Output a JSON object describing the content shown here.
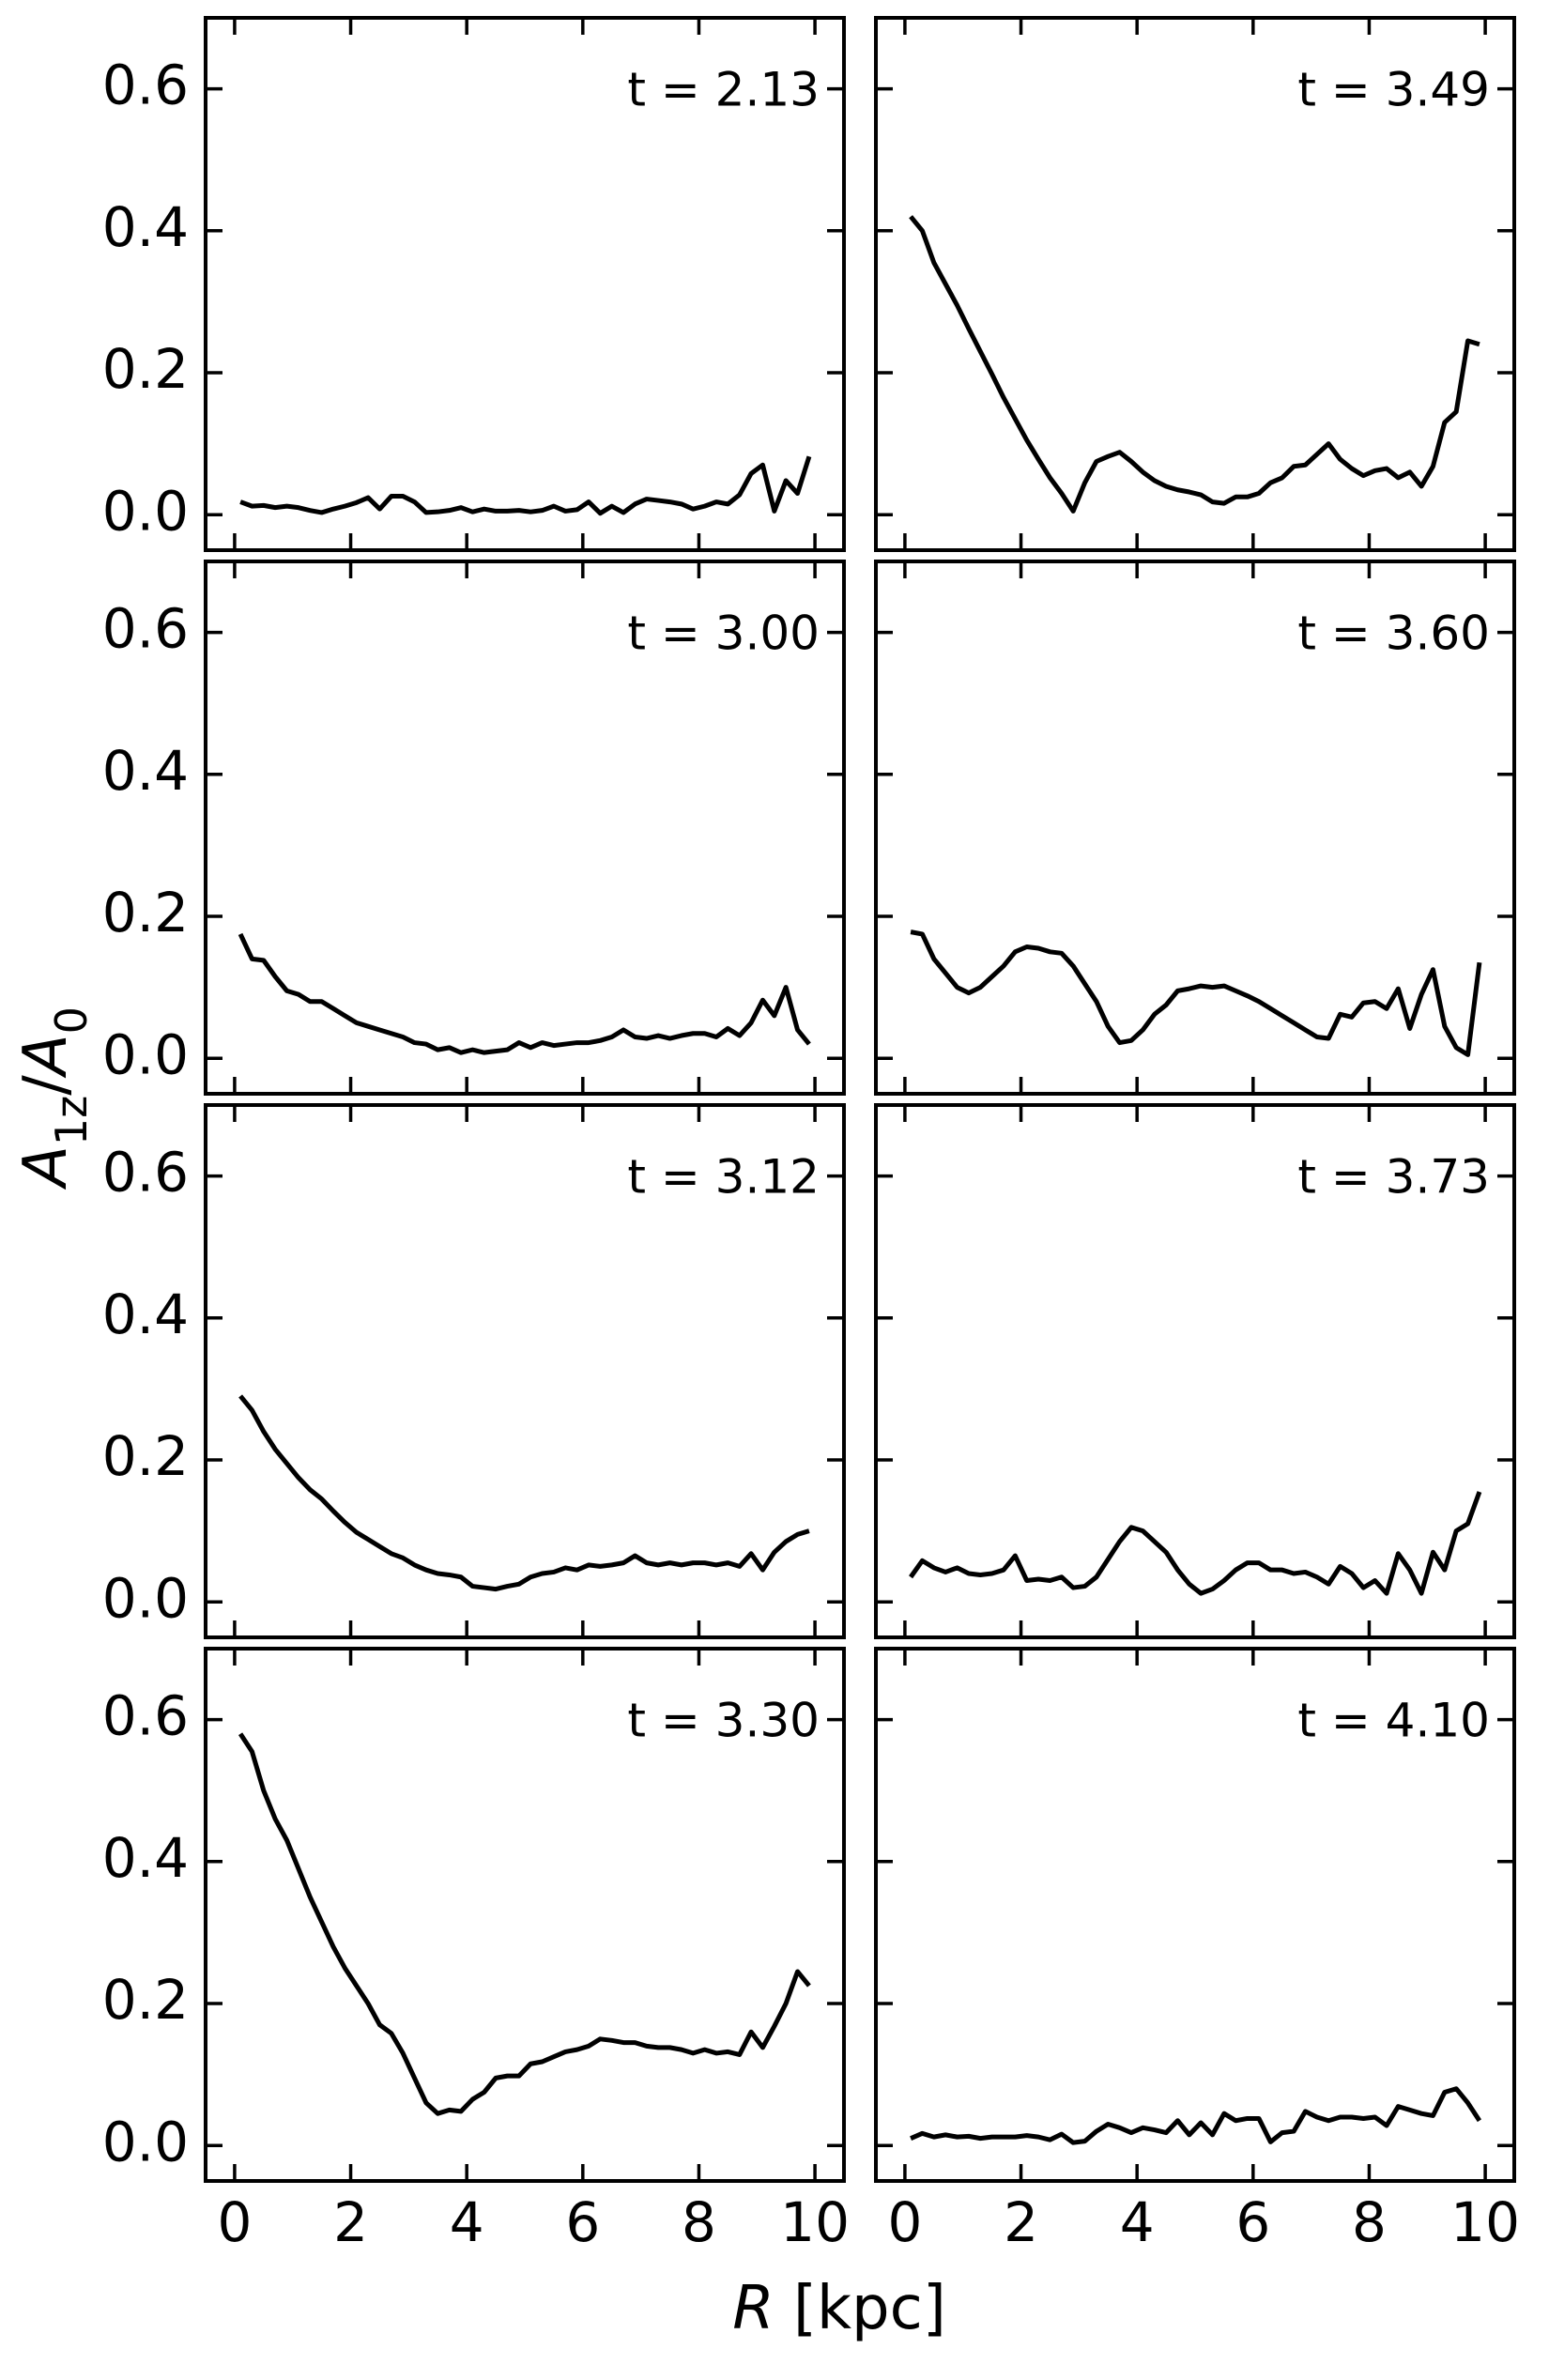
{
  "figure": {
    "xlabel": [
      {
        "text": "R",
        "italic": true
      },
      {
        "text": " [kpc]"
      }
    ],
    "ylabel": [
      {
        "text": "A",
        "italic": true
      },
      {
        "text": "1z",
        "sub": true
      },
      {
        "text": "/"
      },
      {
        "text": "A",
        "italic": true
      },
      {
        "text": "0",
        "sub": true
      }
    ]
  },
  "chart_data": [
    {
      "type": "line",
      "annotation": "t = 2.13",
      "x": [
        0.1,
        0.3,
        0.5,
        0.7,
        0.9,
        1.1,
        1.3,
        1.5,
        1.7,
        1.9,
        2.1,
        2.3,
        2.5,
        2.7,
        2.9,
        3.1,
        3.3,
        3.5,
        3.7,
        3.9,
        4.1,
        4.3,
        4.5,
        4.7,
        4.9,
        5.1,
        5.3,
        5.5,
        5.7,
        5.9,
        6.1,
        6.3,
        6.5,
        6.7,
        6.9,
        7.1,
        7.3,
        7.5,
        7.7,
        7.9,
        8.1,
        8.3,
        8.5,
        8.7,
        8.9,
        9.1,
        9.3,
        9.5,
        9.7,
        9.9
      ],
      "series": [
        {
          "color": "#000000",
          "values": [
            0.018,
            0.012,
            0.013,
            0.01,
            0.012,
            0.01,
            0.006,
            0.003,
            0.008,
            0.012,
            0.017,
            0.024,
            0.008,
            0.026,
            0.026,
            0.018,
            0.003,
            0.004,
            0.006,
            0.01,
            0.004,
            0.008,
            0.005,
            0.005,
            0.006,
            0.004,
            0.006,
            0.012,
            0.005,
            0.007,
            0.018,
            0.002,
            0.012,
            0.003,
            0.015,
            0.022,
            0.02,
            0.018,
            0.015,
            0.008,
            0.012,
            0.018,
            0.015,
            0.028,
            0.058,
            0.07,
            0.005,
            0.048,
            0.03,
            0.082
          ]
        }
      ],
      "xlim": [
        -0.5,
        10.5
      ],
      "ylim": [
        -0.05,
        0.7
      ],
      "xticks": [
        0,
        2,
        4,
        6,
        8,
        10
      ],
      "yticks": [
        {
          "value": 0,
          "label": "0.0"
        },
        0.2,
        0.4,
        0.6
      ]
    },
    {
      "type": "line",
      "annotation": "t = 3.49",
      "x": [
        0.1,
        0.3,
        0.5,
        0.7,
        0.9,
        1.1,
        1.3,
        1.5,
        1.7,
        1.9,
        2.1,
        2.3,
        2.5,
        2.7,
        2.9,
        3.1,
        3.3,
        3.5,
        3.7,
        3.9,
        4.1,
        4.3,
        4.5,
        4.7,
        4.9,
        5.1,
        5.3,
        5.5,
        5.7,
        5.9,
        6.1,
        6.3,
        6.5,
        6.7,
        6.9,
        7.1,
        7.3,
        7.5,
        7.7,
        7.9,
        8.1,
        8.3,
        8.5,
        8.7,
        8.9,
        9.1,
        9.3,
        9.5,
        9.7,
        9.9
      ],
      "series": [
        {
          "color": "#000000",
          "values": [
            0.42,
            0.4,
            0.355,
            0.325,
            0.295,
            0.262,
            0.23,
            0.198,
            0.165,
            0.135,
            0.105,
            0.078,
            0.052,
            0.03,
            0.005,
            0.045,
            0.075,
            0.082,
            0.088,
            0.075,
            0.06,
            0.048,
            0.04,
            0.035,
            0.032,
            0.028,
            0.018,
            0.016,
            0.025,
            0.025,
            0.03,
            0.045,
            0.052,
            0.068,
            0.07,
            0.085,
            0.1,
            0.078,
            0.065,
            0.055,
            0.062,
            0.065,
            0.052,
            0.06,
            0.04,
            0.068,
            0.13,
            0.145,
            0.245,
            0.24
          ]
        }
      ],
      "xlim": [
        -0.5,
        10.5
      ],
      "ylim": [
        -0.05,
        0.7
      ],
      "xticks": [
        0,
        2,
        4,
        6,
        8,
        10
      ],
      "yticks": [
        0,
        0.2,
        0.4,
        0.6
      ]
    },
    {
      "type": "line",
      "annotation": "t = 3.00",
      "x": [
        0.1,
        0.3,
        0.5,
        0.7,
        0.9,
        1.1,
        1.3,
        1.5,
        1.7,
        1.9,
        2.1,
        2.3,
        2.5,
        2.7,
        2.9,
        3.1,
        3.3,
        3.5,
        3.7,
        3.9,
        4.1,
        4.3,
        4.5,
        4.7,
        4.9,
        5.1,
        5.3,
        5.5,
        5.7,
        5.9,
        6.1,
        6.3,
        6.5,
        6.7,
        6.9,
        7.1,
        7.3,
        7.5,
        7.7,
        7.9,
        8.1,
        8.3,
        8.5,
        8.7,
        8.9,
        9.1,
        9.3,
        9.5,
        9.7,
        9.9
      ],
      "series": [
        {
          "color": "#000000",
          "values": [
            0.175,
            0.14,
            0.138,
            0.115,
            0.095,
            0.09,
            0.08,
            0.08,
            0.07,
            0.06,
            0.05,
            0.045,
            0.04,
            0.035,
            0.03,
            0.022,
            0.02,
            0.012,
            0.015,
            0.008,
            0.012,
            0.008,
            0.01,
            0.012,
            0.022,
            0.015,
            0.022,
            0.018,
            0.02,
            0.022,
            0.022,
            0.025,
            0.03,
            0.04,
            0.03,
            0.028,
            0.032,
            0.028,
            0.032,
            0.035,
            0.035,
            0.03,
            0.042,
            0.032,
            0.05,
            0.082,
            0.06,
            0.1,
            0.04,
            0.02
          ]
        }
      ],
      "xlim": [
        -0.5,
        10.5
      ],
      "ylim": [
        -0.05,
        0.7
      ],
      "xticks": [
        0,
        2,
        4,
        6,
        8,
        10
      ],
      "yticks": [
        {
          "value": 0,
          "label": "0.0"
        },
        0.2,
        0.4,
        0.6
      ]
    },
    {
      "type": "line",
      "annotation": "t = 3.60",
      "x": [
        0.1,
        0.3,
        0.5,
        0.7,
        0.9,
        1.1,
        1.3,
        1.5,
        1.7,
        1.9,
        2.1,
        2.3,
        2.5,
        2.7,
        2.9,
        3.1,
        3.3,
        3.5,
        3.7,
        3.9,
        4.1,
        4.3,
        4.5,
        4.7,
        4.9,
        5.1,
        5.3,
        5.5,
        5.7,
        5.9,
        6.1,
        6.3,
        6.5,
        6.7,
        6.9,
        7.1,
        7.3,
        7.5,
        7.7,
        7.9,
        8.1,
        8.3,
        8.5,
        8.7,
        8.9,
        9.1,
        9.3,
        9.5,
        9.7,
        9.9
      ],
      "series": [
        {
          "color": "#000000",
          "values": [
            0.178,
            0.175,
            0.14,
            0.12,
            0.1,
            0.092,
            0.1,
            0.115,
            0.13,
            0.15,
            0.157,
            0.155,
            0.15,
            0.148,
            0.13,
            0.105,
            0.08,
            0.045,
            0.022,
            0.025,
            0.04,
            0.062,
            0.075,
            0.095,
            0.098,
            0.102,
            0.1,
            0.102,
            0.095,
            0.088,
            0.08,
            0.07,
            0.06,
            0.05,
            0.04,
            0.03,
            0.028,
            0.062,
            0.058,
            0.078,
            0.08,
            0.07,
            0.098,
            0.042,
            0.09,
            0.125,
            0.045,
            0.015,
            0.005,
            0.135
          ]
        }
      ],
      "xlim": [
        -0.5,
        10.5
      ],
      "ylim": [
        -0.05,
        0.7
      ],
      "xticks": [
        0,
        2,
        4,
        6,
        8,
        10
      ],
      "yticks": [
        0,
        0.2,
        0.4,
        0.6
      ]
    },
    {
      "type": "line",
      "annotation": "t = 3.12",
      "x": [
        0.1,
        0.3,
        0.5,
        0.7,
        0.9,
        1.1,
        1.3,
        1.5,
        1.7,
        1.9,
        2.1,
        2.3,
        2.5,
        2.7,
        2.9,
        3.1,
        3.3,
        3.5,
        3.7,
        3.9,
        4.1,
        4.3,
        4.5,
        4.7,
        4.9,
        5.1,
        5.3,
        5.5,
        5.7,
        5.9,
        6.1,
        6.3,
        6.5,
        6.7,
        6.9,
        7.1,
        7.3,
        7.5,
        7.7,
        7.9,
        8.1,
        8.3,
        8.5,
        8.7,
        8.9,
        9.1,
        9.3,
        9.5,
        9.7,
        9.9
      ],
      "series": [
        {
          "color": "#000000",
          "values": [
            0.29,
            0.27,
            0.24,
            0.215,
            0.195,
            0.175,
            0.158,
            0.145,
            0.128,
            0.112,
            0.098,
            0.088,
            0.078,
            0.068,
            0.062,
            0.052,
            0.045,
            0.04,
            0.038,
            0.035,
            0.022,
            0.02,
            0.018,
            0.022,
            0.025,
            0.035,
            0.04,
            0.042,
            0.048,
            0.045,
            0.052,
            0.05,
            0.052,
            0.055,
            0.065,
            0.055,
            0.052,
            0.055,
            0.052,
            0.055,
            0.055,
            0.052,
            0.055,
            0.05,
            0.068,
            0.045,
            0.07,
            0.085,
            0.095,
            0.1
          ]
        }
      ],
      "xlim": [
        -0.5,
        10.5
      ],
      "ylim": [
        -0.05,
        0.7
      ],
      "xticks": [
        0,
        2,
        4,
        6,
        8,
        10
      ],
      "yticks": [
        {
          "value": 0,
          "label": "0.0"
        },
        0.2,
        0.4,
        0.6
      ]
    },
    {
      "type": "line",
      "annotation": "t = 3.73",
      "x": [
        0.1,
        0.3,
        0.5,
        0.7,
        0.9,
        1.1,
        1.3,
        1.5,
        1.7,
        1.9,
        2.1,
        2.3,
        2.5,
        2.7,
        2.9,
        3.1,
        3.3,
        3.5,
        3.7,
        3.9,
        4.1,
        4.3,
        4.5,
        4.7,
        4.9,
        5.1,
        5.3,
        5.5,
        5.7,
        5.9,
        6.1,
        6.3,
        6.5,
        6.7,
        6.9,
        7.1,
        7.3,
        7.5,
        7.7,
        7.9,
        8.1,
        8.3,
        8.5,
        8.7,
        8.9,
        9.1,
        9.3,
        9.5,
        9.7,
        9.9
      ],
      "series": [
        {
          "color": "#000000",
          "values": [
            0.035,
            0.058,
            0.048,
            0.042,
            0.048,
            0.04,
            0.038,
            0.04,
            0.045,
            0.065,
            0.03,
            0.032,
            0.03,
            0.035,
            0.02,
            0.022,
            0.035,
            0.06,
            0.085,
            0.105,
            0.1,
            0.085,
            0.07,
            0.045,
            0.025,
            0.012,
            0.018,
            0.03,
            0.045,
            0.055,
            0.055,
            0.045,
            0.045,
            0.04,
            0.042,
            0.035,
            0.025,
            0.05,
            0.04,
            0.02,
            0.03,
            0.012,
            0.068,
            0.045,
            0.012,
            0.07,
            0.045,
            0.1,
            0.11,
            0.155
          ]
        }
      ],
      "xlim": [
        -0.5,
        10.5
      ],
      "ylim": [
        -0.05,
        0.7
      ],
      "xticks": [
        0,
        2,
        4,
        6,
        8,
        10
      ],
      "yticks": [
        0,
        0.2,
        0.4,
        0.6
      ]
    },
    {
      "type": "line",
      "annotation": "t = 3.30",
      "x": [
        0.1,
        0.3,
        0.5,
        0.7,
        0.9,
        1.1,
        1.3,
        1.5,
        1.7,
        1.9,
        2.1,
        2.3,
        2.5,
        2.7,
        2.9,
        3.1,
        3.3,
        3.5,
        3.7,
        3.9,
        4.1,
        4.3,
        4.5,
        4.7,
        4.9,
        5.1,
        5.3,
        5.5,
        5.7,
        5.9,
        6.1,
        6.3,
        6.5,
        6.7,
        6.9,
        7.1,
        7.3,
        7.5,
        7.7,
        7.9,
        8.1,
        8.3,
        8.5,
        8.7,
        8.9,
        9.1,
        9.3,
        9.5,
        9.7,
        9.9
      ],
      "series": [
        {
          "color": "#000000",
          "values": [
            0.58,
            0.555,
            0.5,
            0.46,
            0.43,
            0.39,
            0.35,
            0.315,
            0.28,
            0.25,
            0.225,
            0.2,
            0.17,
            0.158,
            0.13,
            0.095,
            0.06,
            0.045,
            0.05,
            0.048,
            0.065,
            0.075,
            0.095,
            0.098,
            0.098,
            0.115,
            0.118,
            0.125,
            0.132,
            0.135,
            0.14,
            0.15,
            0.148,
            0.145,
            0.145,
            0.14,
            0.138,
            0.138,
            0.135,
            0.13,
            0.135,
            0.13,
            0.132,
            0.128,
            0.16,
            0.138,
            0.168,
            0.2,
            0.245,
            0.225
          ]
        }
      ],
      "xlim": [
        -0.5,
        10.5
      ],
      "ylim": [
        -0.05,
        0.7
      ],
      "xticks": [
        0,
        2,
        4,
        6,
        8,
        10
      ],
      "yticks": [
        {
          "value": 0,
          "label": "0.0"
        },
        0.2,
        0.4,
        0.6
      ]
    },
    {
      "type": "line",
      "annotation": "t = 4.10",
      "x": [
        0.1,
        0.3,
        0.5,
        0.7,
        0.9,
        1.1,
        1.3,
        1.5,
        1.7,
        1.9,
        2.1,
        2.3,
        2.5,
        2.7,
        2.9,
        3.1,
        3.3,
        3.5,
        3.7,
        3.9,
        4.1,
        4.3,
        4.5,
        4.7,
        4.9,
        5.1,
        5.3,
        5.5,
        5.7,
        5.9,
        6.1,
        6.3,
        6.5,
        6.7,
        6.9,
        7.1,
        7.3,
        7.5,
        7.7,
        7.9,
        8.1,
        8.3,
        8.5,
        8.7,
        8.9,
        9.1,
        9.3,
        9.5,
        9.7,
        9.9
      ],
      "series": [
        {
          "color": "#000000",
          "values": [
            0.01,
            0.017,
            0.012,
            0.015,
            0.012,
            0.013,
            0.01,
            0.012,
            0.012,
            0.012,
            0.014,
            0.012,
            0.008,
            0.016,
            0.004,
            0.006,
            0.02,
            0.03,
            0.025,
            0.018,
            0.025,
            0.022,
            0.018,
            0.035,
            0.015,
            0.032,
            0.015,
            0.045,
            0.035,
            0.038,
            0.038,
            0.005,
            0.018,
            0.02,
            0.048,
            0.04,
            0.035,
            0.04,
            0.04,
            0.038,
            0.04,
            0.028,
            0.055,
            0.05,
            0.045,
            0.042,
            0.075,
            0.08,
            0.06,
            0.035
          ]
        }
      ],
      "xlim": [
        -0.5,
        10.5
      ],
      "ylim": [
        -0.05,
        0.7
      ],
      "xticks": [
        0,
        2,
        4,
        6,
        8,
        10
      ],
      "yticks": [
        0,
        0.2,
        0.4,
        0.6
      ]
    }
  ]
}
